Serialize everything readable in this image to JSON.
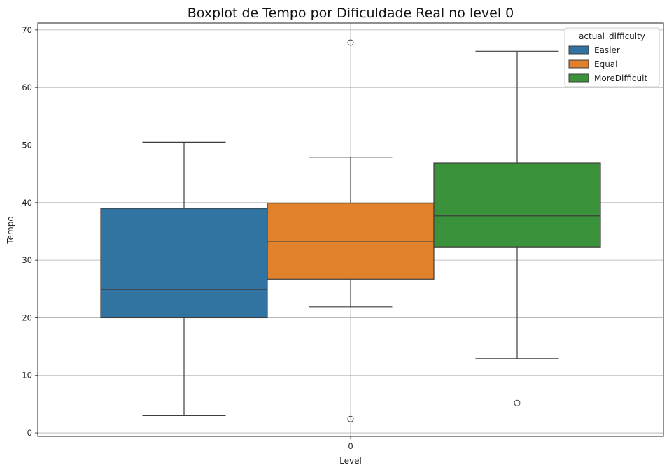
{
  "chart_data": {
    "type": "boxplot",
    "title": "Boxplot de Tempo por Dificuldade Real no level 0",
    "xlabel": "Level",
    "ylabel": "Tempo",
    "categories": [
      "0"
    ],
    "ylim": [
      -0.6,
      71.2
    ],
    "yticks": [
      0,
      10,
      20,
      30,
      40,
      50,
      60,
      70
    ],
    "grid": true,
    "legend": {
      "title": "actual_difficulty",
      "placement": "top-right"
    },
    "series": [
      {
        "name": "Easier",
        "color": "#3274a1",
        "whisker_low": 3.0,
        "q1": 20.0,
        "median": 24.9,
        "q3": 39.0,
        "whisker_high": 50.5,
        "outliers": []
      },
      {
        "name": "Equal",
        "color": "#e1812c",
        "whisker_low": 21.9,
        "q1": 26.7,
        "median": 33.3,
        "q3": 39.9,
        "whisker_high": 47.9,
        "outliers": [
          67.8,
          2.4
        ]
      },
      {
        "name": "MoreDifficult",
        "color": "#3a923a",
        "whisker_low": 12.9,
        "q1": 32.3,
        "median": 37.7,
        "q3": 46.9,
        "whisker_high": 66.3,
        "outliers": [
          5.2
        ]
      }
    ]
  }
}
